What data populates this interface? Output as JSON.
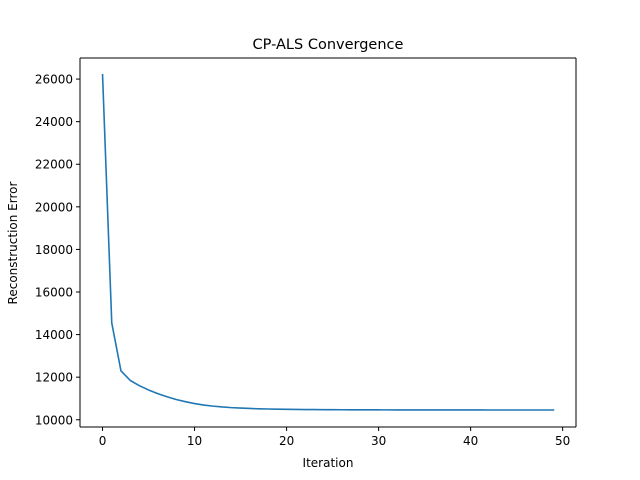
{
  "chart_data": {
    "type": "line",
    "title": "CP-ALS Convergence",
    "xlabel": "Iteration",
    "ylabel": "Reconstruction Error",
    "xlim": [
      -2.45,
      51.45
    ],
    "ylim": [
      9660,
      26990
    ],
    "xticks": [
      0,
      10,
      20,
      30,
      40,
      50
    ],
    "yticks": [
      10000,
      12000,
      14000,
      16000,
      18000,
      20000,
      22000,
      24000,
      26000
    ],
    "grid": false,
    "legend": "none",
    "series": [
      {
        "color": "#1f77b4",
        "x": [
          0,
          1,
          2,
          3,
          4,
          5,
          6,
          7,
          8,
          9,
          10,
          11,
          12,
          13,
          14,
          15,
          16,
          17,
          18,
          19,
          20,
          21,
          22,
          23,
          24,
          25,
          26,
          27,
          28,
          29,
          30,
          31,
          32,
          33,
          34,
          35,
          36,
          37,
          38,
          39,
          40,
          41,
          42,
          43,
          44,
          45,
          46,
          47,
          48,
          49
        ],
        "values": [
          26200,
          14550,
          12300,
          11850,
          11600,
          11400,
          11230,
          11080,
          10950,
          10850,
          10760,
          10690,
          10640,
          10600,
          10570,
          10550,
          10530,
          10515,
          10505,
          10495,
          10490,
          10485,
          10480,
          10477,
          10474,
          10472,
          10470,
          10468,
          10467,
          10466,
          10465,
          10464,
          10463,
          10463,
          10462,
          10462,
          10461,
          10461,
          10460,
          10460,
          10460,
          10460,
          10459,
          10459,
          10459,
          10459,
          10458,
          10458,
          10458,
          10458
        ]
      }
    ]
  }
}
